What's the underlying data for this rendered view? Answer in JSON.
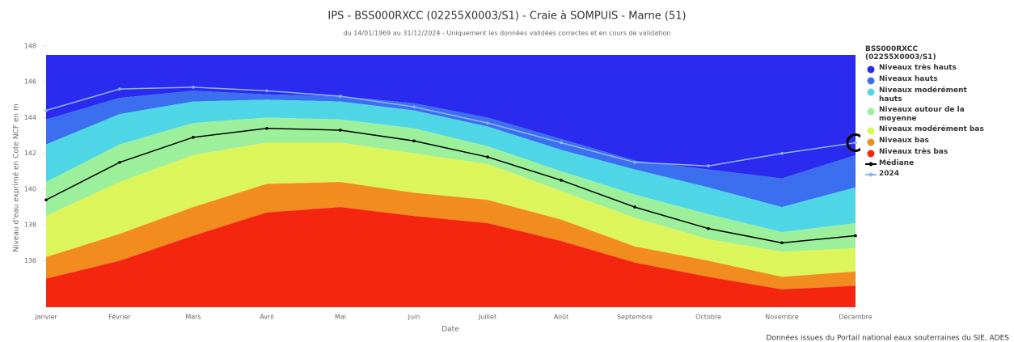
{
  "chart_data": {
    "type": "arearange",
    "title": "IPS - BSS000RXCC (02255X0003/S1) - Craie à SOMPUIS - Marne (51)",
    "subtitle": "du 14/01/1969 au 31/12/2024 - Uniquement les données validées correctes et en cours de validation",
    "x_label": "Date",
    "y_label": "Niveau d'eau exprimé en Cote NCF en m",
    "legend_title": "BSS000RXCC (02255X0003/S1)",
    "source": "Données issues du Portail national eaux souterraines du SIE, ADES",
    "legend_position": "right",
    "categories": [
      "Janvier",
      "Février",
      "Mars",
      "Avril",
      "Mai",
      "Juin",
      "Juillet",
      "Août",
      "Septembre",
      "Octobre",
      "Novembre",
      "Décembre"
    ],
    "ylim": [
      133.4,
      148
    ],
    "yticks": [
      136,
      138,
      140,
      142,
      144,
      146,
      148
    ],
    "series": [
      {
        "name": "Niveaux très hauts",
        "color": "#2b2bef",
        "low": [
          143.9,
          145.1,
          145.5,
          145.3,
          145.2,
          144.8,
          144.0,
          142.8,
          141.6,
          141.1,
          140.6,
          141.9
        ],
        "high": [
          147.5,
          147.5,
          147.5,
          147.5,
          147.5,
          147.5,
          147.5,
          147.5,
          147.5,
          147.5,
          147.5,
          147.5
        ]
      },
      {
        "name": "Niveaux hauts",
        "color": "#3b6ff0",
        "low": [
          142.5,
          144.2,
          144.9,
          145.0,
          144.9,
          144.4,
          143.5,
          142.2,
          141.1,
          140.1,
          139.0,
          140.1
        ],
        "high": [
          143.9,
          145.1,
          145.5,
          145.3,
          145.2,
          144.8,
          144.0,
          142.8,
          141.6,
          141.1,
          140.6,
          141.9
        ]
      },
      {
        "name": "Niveaux modérément hauts",
        "color": "#4fd6e6",
        "low": [
          140.4,
          142.5,
          143.7,
          144.0,
          143.9,
          143.4,
          142.4,
          141.0,
          139.7,
          138.6,
          137.6,
          138.1
        ],
        "high": [
          142.5,
          144.2,
          144.9,
          145.0,
          144.9,
          144.4,
          143.5,
          142.2,
          141.1,
          140.1,
          139.0,
          140.1
        ]
      },
      {
        "name": "Niveaux autour de la moyenne",
        "color": "#9cf09c",
        "low": [
          138.5,
          140.4,
          141.9,
          142.6,
          142.6,
          142.0,
          141.4,
          139.9,
          138.4,
          137.2,
          136.5,
          136.7
        ],
        "high": [
          140.4,
          142.5,
          143.7,
          144.0,
          143.9,
          143.4,
          142.4,
          141.0,
          139.7,
          138.6,
          137.6,
          138.1
        ]
      },
      {
        "name": "Niveaux modérément bas",
        "color": "#dcf55a",
        "low": [
          136.2,
          137.5,
          139.0,
          140.3,
          140.4,
          139.8,
          139.4,
          138.3,
          136.8,
          136.0,
          135.1,
          135.4
        ],
        "high": [
          138.5,
          140.4,
          141.9,
          142.6,
          142.6,
          142.0,
          141.4,
          139.9,
          138.4,
          137.2,
          136.5,
          136.7
        ]
      },
      {
        "name": "Niveaux bas",
        "color": "#f28c1e",
        "low": [
          135.0,
          136.0,
          137.4,
          138.7,
          139.0,
          138.5,
          138.1,
          137.1,
          135.9,
          135.1,
          134.4,
          134.6
        ],
        "high": [
          136.2,
          137.5,
          139.0,
          140.3,
          140.4,
          139.8,
          139.4,
          138.3,
          136.8,
          136.0,
          135.1,
          135.4
        ]
      },
      {
        "name": "Niveaux très bas",
        "color": "#f5260f",
        "high": [
          135.0,
          136.0,
          137.4,
          138.7,
          139.0,
          138.5,
          138.1,
          137.1,
          135.9,
          135.1,
          134.4,
          134.6
        ]
      },
      {
        "name": "Médiane",
        "type": "line",
        "color": "#000000",
        "values": [
          139.4,
          141.5,
          142.9,
          143.4,
          143.3,
          142.7,
          141.8,
          140.5,
          139.0,
          137.8,
          137.0,
          137.4
        ]
      },
      {
        "name": "2024",
        "type": "line",
        "color": "#8fb6f2",
        "values": [
          144.4,
          145.6,
          145.7,
          145.5,
          145.2,
          144.6,
          143.7,
          142.6,
          141.5,
          141.3,
          142.0,
          142.6
        ]
      }
    ]
  }
}
